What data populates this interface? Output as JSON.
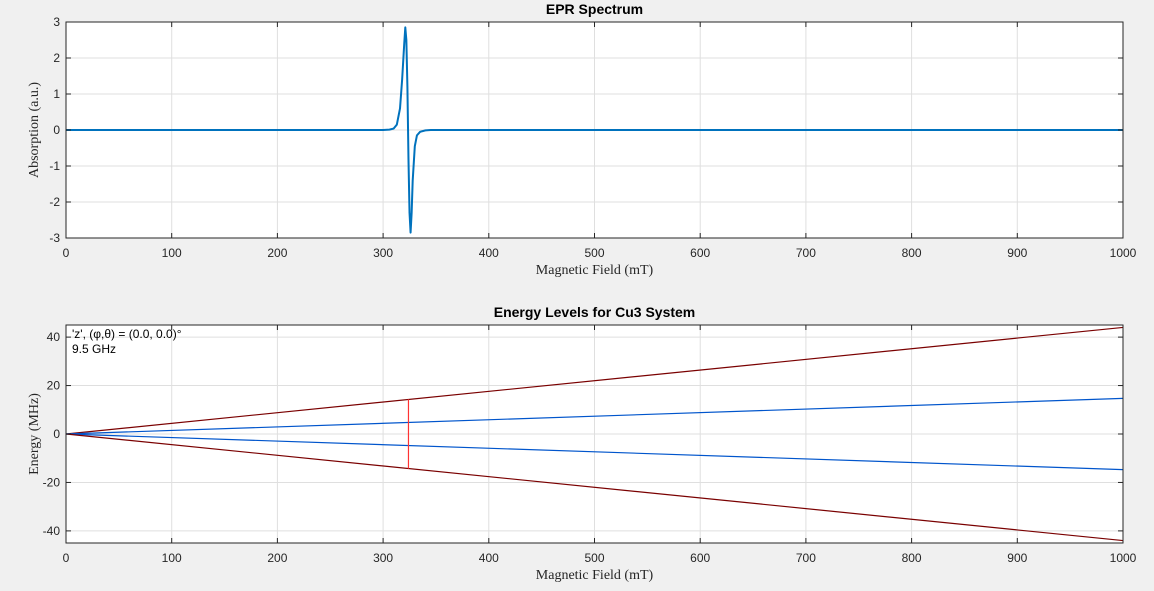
{
  "window": {
    "background": "#f0f0f0"
  },
  "chart_data": [
    {
      "type": "line",
      "title": "EPR Spectrum",
      "xlabel": "Magnetic Field (mT)",
      "ylabel": "Absorption (a.u.)",
      "xlim": [
        0,
        1000
      ],
      "ylim": [
        -3,
        3
      ],
      "xticks": [
        0,
        100,
        200,
        300,
        400,
        500,
        600,
        700,
        800,
        900,
        1000
      ],
      "yticks": [
        -3,
        -2,
        -1,
        0,
        1,
        2,
        3
      ],
      "grid": true,
      "color": "#0072bd",
      "series": [
        {
          "x": [
            0,
            300,
            306,
            310,
            313,
            316,
            318,
            320,
            321,
            322,
            323,
            324,
            325,
            326,
            327,
            328,
            330,
            332,
            335,
            340,
            345,
            350,
            1000
          ],
          "y": [
            0,
            0,
            0.01,
            0.04,
            0.15,
            0.6,
            1.4,
            2.4,
            2.85,
            2.5,
            1.2,
            -0.8,
            -2.3,
            -2.85,
            -2.3,
            -1.4,
            -0.45,
            -0.15,
            -0.05,
            -0.01,
            0,
            0,
            0
          ]
        }
      ]
    },
    {
      "type": "line",
      "title": "Energy Levels for Cu3 System",
      "xlabel": "Magnetic Field (mT)",
      "ylabel": "Energy (MHz)",
      "xlim": [
        0,
        1000
      ],
      "ylim": [
        -45,
        45
      ],
      "xticks": [
        0,
        100,
        200,
        300,
        400,
        500,
        600,
        700,
        800,
        900,
        1000
      ],
      "yticks": [
        -40,
        -20,
        0,
        20,
        40
      ],
      "grid": true,
      "annotations": [
        "'z',  (φ,θ) = (0.0, 0.0)°",
        "9.5 GHz"
      ],
      "series": [
        {
          "color": "#7a0000",
          "x": [
            0,
            1000
          ],
          "y": [
            0,
            44
          ]
        },
        {
          "color": "#0055cc",
          "x": [
            0,
            1000
          ],
          "y": [
            0,
            14.7
          ]
        },
        {
          "color": "#0055cc",
          "x": [
            0,
            1000
          ],
          "y": [
            0,
            -14.7
          ]
        },
        {
          "color": "#7a0000",
          "x": [
            0,
            1000
          ],
          "y": [
            0,
            -44
          ]
        }
      ],
      "transition": {
        "color": "#ff3333",
        "x": 324,
        "y_from": -14.3,
        "y_to": 14.3
      }
    }
  ]
}
